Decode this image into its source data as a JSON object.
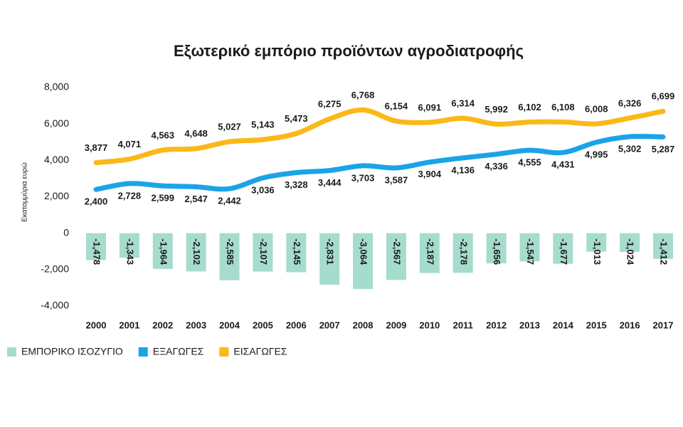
{
  "chart_data": {
    "type": "combo",
    "title": "Εξωτερικό εμπόριο προϊόντων αγροδιατροφής",
    "y_label": "Εκατομμύρια ευρώ",
    "categories": [
      "2000",
      "2001",
      "2002",
      "2003",
      "2004",
      "2005",
      "2006",
      "2007",
      "2008",
      "2009",
      "2010",
      "2011",
      "2012",
      "2013",
      "2014",
      "2015",
      "2016",
      "2017"
    ],
    "ylim": [
      -4000,
      8000
    ],
    "yticks": [
      {
        "value": -4000,
        "label": "-4,000"
      },
      {
        "value": -2000,
        "label": "-2,000"
      },
      0,
      {
        "value": 2000,
        "label": "2,000"
      },
      {
        "value": 4000,
        "label": "4,000"
      },
      {
        "value": 6000,
        "label": "6,000"
      },
      {
        "value": 8000,
        "label": "8,000"
      }
    ],
    "series": [
      {
        "name": "ΕΜΠΟΡΙΚΟ ΙΣΟΖΥΓΙΟ",
        "type": "bar",
        "color": "#a6dccd",
        "values": [
          -1478,
          -1343,
          -1964,
          -2102,
          -2585,
          -2107,
          -2145,
          -2831,
          -3064,
          -2567,
          -2187,
          -2178,
          -1656,
          -1547,
          -1677,
          -1013,
          -1024,
          -1412
        ],
        "value_labels": [
          "-1,478",
          "-1,343",
          "-1,964",
          "-2,102",
          "-2,585",
          "-2,107",
          "-2,145",
          "-2,831",
          "-3,064",
          "-2,567",
          "-2,187",
          "-2,178",
          "-1,656",
          "-1,547",
          "-1,677",
          "-1,013",
          "-1,024",
          "-1,412"
        ]
      },
      {
        "name": "ΕΞΑΓΩΓΕΣ",
        "type": "line",
        "color": "#1ba3e8",
        "values": [
          2400,
          2728,
          2599,
          2547,
          2442,
          3036,
          3328,
          3444,
          3703,
          3587,
          3904,
          4136,
          4336,
          4555,
          4431,
          4995,
          5302,
          5287
        ],
        "value_labels": [
          "2,400",
          "2,728",
          "2,599",
          "2,547",
          "2,442",
          "3,036",
          "3,328",
          "3,444",
          "3,703",
          "3,587",
          "3,904",
          "4,136",
          "4,336",
          "4,555",
          "4,431",
          "4,995",
          "5,302",
          "5,287"
        ]
      },
      {
        "name": "ΕΙΣΑΓΩΓΕΣ",
        "type": "line",
        "color": "#fbb817",
        "values": [
          3877,
          4071,
          4563,
          4648,
          5027,
          5143,
          5473,
          6275,
          6768,
          6154,
          6091,
          6314,
          5992,
          6102,
          6108,
          6008,
          6326,
          6699
        ],
        "value_labels": [
          "3,877",
          "4,071",
          "4,563",
          "4,648",
          "5,027",
          "5,143",
          "5,473",
          "6,275",
          "6,768",
          "6,154",
          "6,091",
          "6,314",
          "5,992",
          "6,102",
          "6,108",
          "6,008",
          "6,326",
          "6,699"
        ]
      }
    ]
  }
}
